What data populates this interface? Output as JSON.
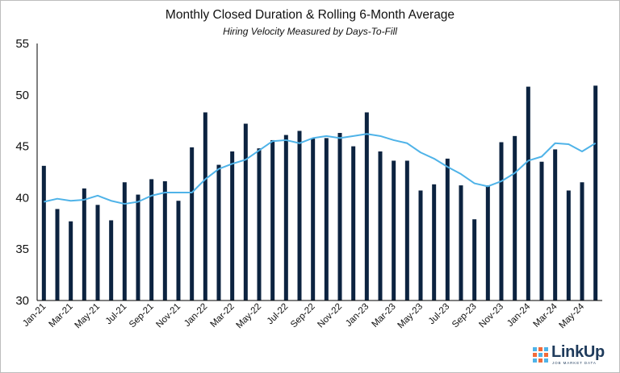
{
  "chart_data": {
    "type": "bar",
    "title": "Monthly Closed Duration & Rolling 6-Month Average",
    "subtitle": "Hiring Velocity Measured by Days-To-Fill",
    "xlabel": "",
    "ylabel": "",
    "ylim": [
      30,
      55
    ],
    "yticks": [
      "30",
      "35",
      "40",
      "45",
      "50",
      "55"
    ],
    "grid": false,
    "legend": "none",
    "colors": {
      "bars": "#0c2340",
      "line": "#4fb3e8"
    },
    "categories": [
      "Jan-21",
      "Feb-21",
      "Mar-21",
      "Apr-21",
      "May-21",
      "Jun-21",
      "Jul-21",
      "Aug-21",
      "Sep-21",
      "Oct-21",
      "Nov-21",
      "Dec-21",
      "Jan-22",
      "Feb-22",
      "Mar-22",
      "Apr-22",
      "May-22",
      "Jun-22",
      "Jul-22",
      "Aug-22",
      "Sep-22",
      "Oct-22",
      "Nov-22",
      "Dec-22",
      "Jan-23",
      "Feb-23",
      "Mar-23",
      "Apr-23",
      "May-23",
      "Jun-23",
      "Jul-23",
      "Aug-23",
      "Sep-23",
      "Oct-23",
      "Nov-23",
      "Dec-23",
      "Jan-24",
      "Feb-24",
      "Mar-24",
      "Apr-24",
      "May-24",
      "Jun-24"
    ],
    "x_tick_labels": [
      "Jan-21",
      "Mar-21",
      "May-21",
      "Jul-21",
      "Sep-21",
      "Nov-21",
      "Jan-22",
      "Mar-22",
      "May-22",
      "Jul-22",
      "Sep-22",
      "Nov-22",
      "Jan-23",
      "Mar-23",
      "May-23",
      "Jul-23",
      "Sep-23",
      "Nov-23",
      "Jan-24",
      "Mar-24",
      "May-24"
    ],
    "series": [
      {
        "type": "bar",
        "values": [
          43.1,
          38.9,
          37.7,
          40.9,
          39.3,
          37.8,
          41.5,
          40.3,
          41.8,
          41.6,
          39.7,
          44.9,
          48.3,
          43.2,
          44.5,
          47.2,
          44.8,
          45.6,
          46.1,
          46.5,
          45.8,
          45.8,
          46.3,
          45.0,
          48.3,
          44.5,
          43.6,
          43.6,
          40.7,
          41.3,
          43.8,
          41.2,
          37.9,
          41.2,
          45.4,
          46.0,
          50.8,
          43.5,
          44.7,
          40.7,
          41.5,
          50.9
        ]
      },
      {
        "type": "line",
        "values": [
          39.6,
          39.9,
          39.7,
          39.8,
          40.2,
          39.7,
          39.4,
          39.6,
          40.2,
          40.5,
          40.5,
          40.5,
          41.8,
          42.8,
          43.3,
          43.7,
          44.6,
          45.5,
          45.6,
          45.3,
          45.8,
          46.0,
          45.8,
          46.0,
          46.2,
          46.0,
          45.6,
          45.3,
          44.4,
          43.8,
          43.0,
          42.3,
          41.4,
          41.1,
          41.6,
          42.4,
          43.6,
          44.0,
          45.3,
          45.2,
          44.5,
          45.3
        ]
      }
    ]
  },
  "logo": {
    "name": "LinkUp",
    "tagline": "JOB MARKET DATA"
  }
}
